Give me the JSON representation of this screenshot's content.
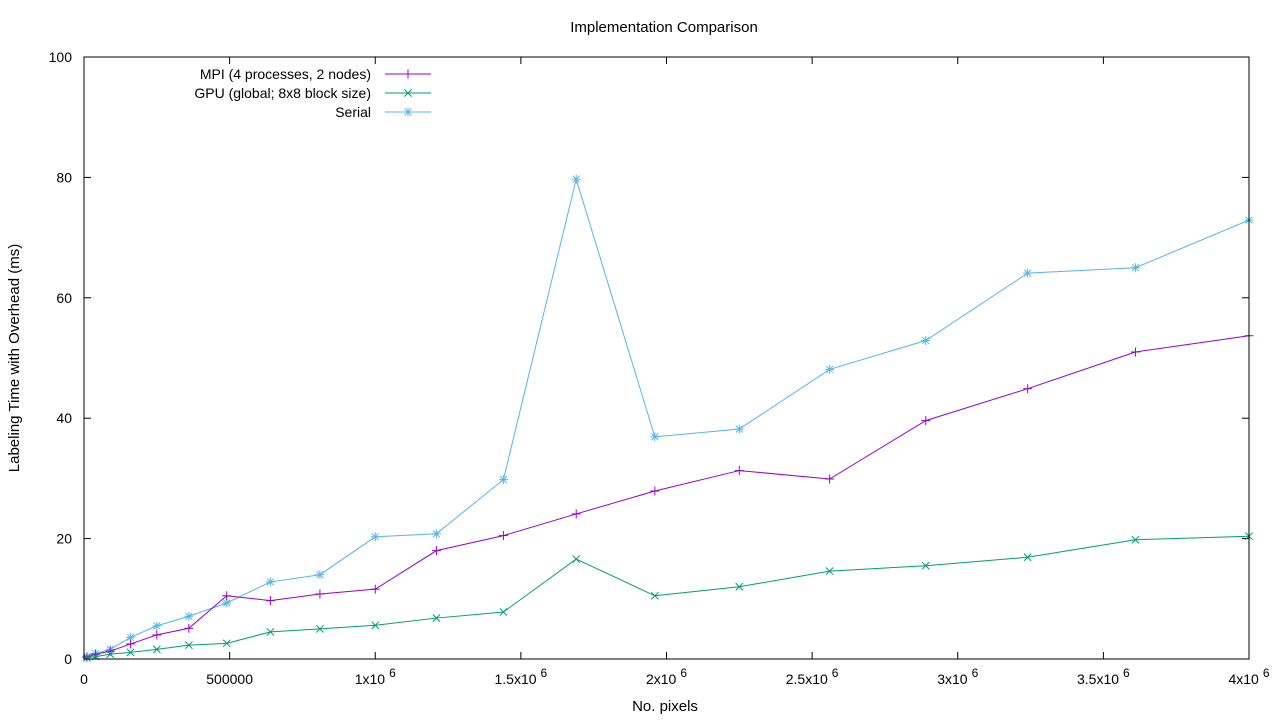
{
  "chart_data": {
    "type": "line",
    "title": "Implementation Comparison",
    "xlabel": "No. pixels",
    "ylabel": "Labeling Time with Overhead (ms)",
    "xlim": [
      0,
      4000000
    ],
    "ylim": [
      0,
      100
    ],
    "grid": false,
    "legend_position": "top-left",
    "x_ticks": [
      {
        "value": 0,
        "base": "0",
        "exp": ""
      },
      {
        "value": 500000,
        "base": "500000",
        "exp": ""
      },
      {
        "value": 1000000,
        "base": "1x10",
        "exp": "6"
      },
      {
        "value": 1500000,
        "base": "1.5x10",
        "exp": "6"
      },
      {
        "value": 2000000,
        "base": "2x10",
        "exp": "6"
      },
      {
        "value": 2500000,
        "base": "2.5x10",
        "exp": "6"
      },
      {
        "value": 3000000,
        "base": "3x10",
        "exp": "6"
      },
      {
        "value": 3500000,
        "base": "3.5x10",
        "exp": "6"
      },
      {
        "value": 4000000,
        "base": "4x10",
        "exp": "6"
      }
    ],
    "y_ticks": [
      {
        "value": 0,
        "label": "0"
      },
      {
        "value": 20,
        "label": "20"
      },
      {
        "value": 40,
        "label": "40"
      },
      {
        "value": 60,
        "label": "60"
      },
      {
        "value": 80,
        "label": "80"
      },
      {
        "value": 100,
        "label": "100"
      }
    ],
    "x": [
      10000,
      40000,
      90000,
      160000,
      250000,
      360000,
      490000,
      640000,
      810000,
      1000000,
      1210000,
      1440000,
      1690000,
      1960000,
      2250000,
      2560000,
      2890000,
      3240000,
      3610000,
      4000000
    ],
    "series": [
      {
        "name": "MPI (4 processes, 2 nodes)",
        "color": "#9400d3",
        "marker": "plus",
        "values": [
          0.3,
          0.8,
          1.3,
          2.5,
          4.0,
          5.1,
          10.5,
          9.7,
          10.8,
          11.6,
          18.0,
          20.5,
          24.1,
          27.9,
          31.3,
          29.9,
          39.6,
          44.9,
          51.0,
          53.7
        ]
      },
      {
        "name": "GPU (global; 8x8 block size)",
        "color": "#009e73",
        "marker": "cross",
        "values": [
          0.2,
          0.4,
          0.8,
          1.1,
          1.6,
          2.3,
          2.6,
          4.5,
          5.0,
          5.6,
          6.8,
          7.8,
          16.6,
          10.5,
          12.0,
          14.6,
          15.5,
          16.9,
          19.8,
          20.4
        ]
      },
      {
        "name": "Serial",
        "color": "#56b4e9",
        "marker": "star",
        "values": [
          0.4,
          0.9,
          1.6,
          3.6,
          5.5,
          7.1,
          9.3,
          12.8,
          14.0,
          20.3,
          20.8,
          29.8,
          79.7,
          36.9,
          38.2,
          48.1,
          52.9,
          64.1,
          65.0,
          72.9
        ]
      }
    ]
  }
}
